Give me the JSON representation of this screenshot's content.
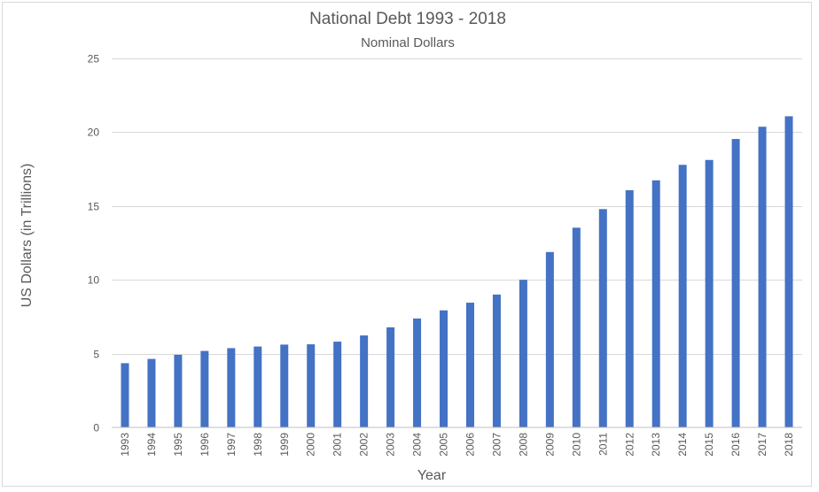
{
  "chart_data": {
    "type": "bar",
    "title": "National Debt 1993 - 2018",
    "subtitle": "Nominal Dollars",
    "xlabel": "Year",
    "ylabel": "US Dollars (in Trillions)",
    "ylim": [
      0,
      25
    ],
    "yticks": [
      0,
      5,
      10,
      15,
      20,
      25
    ],
    "grid": true,
    "legend": "none",
    "bar_color": "#4472c4",
    "categories": [
      "1993",
      "1994",
      "1995",
      "1996",
      "1997",
      "1998",
      "1999",
      "2000",
      "2001",
      "2002",
      "2003",
      "2004",
      "2005",
      "2006",
      "2007",
      "2008",
      "2009",
      "2010",
      "2011",
      "2012",
      "2013",
      "2014",
      "2015",
      "2016",
      "2017",
      "2018"
    ],
    "values": [
      4.35,
      4.64,
      4.92,
      5.18,
      5.37,
      5.48,
      5.61,
      5.63,
      5.81,
      6.23,
      6.78,
      7.38,
      7.93,
      8.45,
      9.0,
      10.0,
      11.88,
      13.53,
      14.79,
      16.07,
      16.74,
      17.79,
      18.12,
      19.54,
      20.37,
      21.08
    ]
  }
}
